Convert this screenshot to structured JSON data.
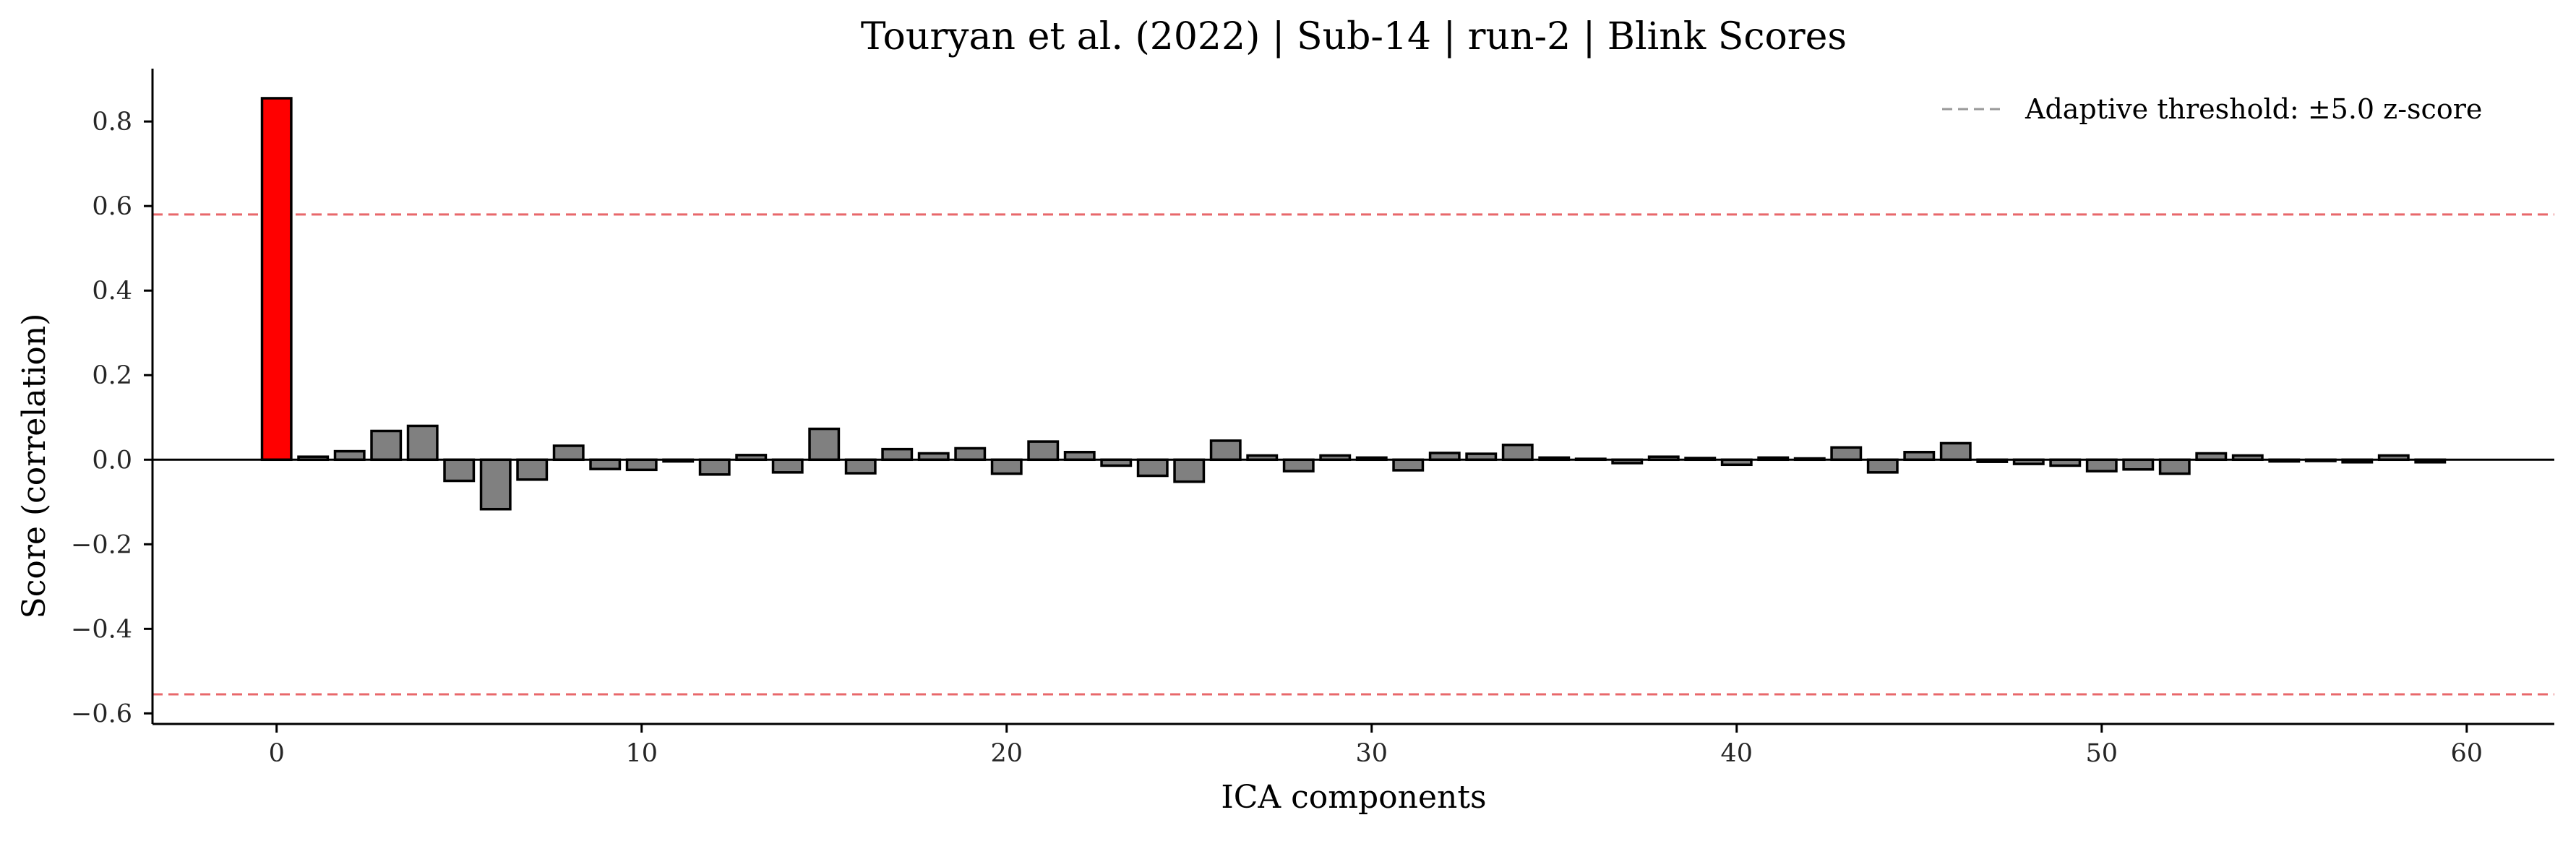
{
  "chart_data": {
    "type": "bar",
    "title": "Touryan et al. (2022) | Sub-14 | run-2 | Blink Scores",
    "xlabel": "ICA components",
    "ylabel": "Score (correlation)",
    "xlim": [
      -3.4,
      62.4
    ],
    "ylim": [
      -0.625,
      0.925
    ],
    "xticks": [
      0,
      10,
      20,
      30,
      40,
      50,
      60
    ],
    "yticks": [
      -0.6,
      -0.4,
      -0.2,
      0.0,
      0.2,
      0.4,
      0.6,
      0.8
    ],
    "xtick_labels": [
      "0",
      "10",
      "20",
      "30",
      "40",
      "50",
      "60"
    ],
    "ytick_labels": [
      "−0.6",
      "−0.4",
      "−0.2",
      "0.0",
      "0.2",
      "0.4",
      "0.6",
      "0.8"
    ],
    "series": [
      {
        "x": [
          0,
          1,
          2,
          3,
          4,
          5,
          6,
          7,
          8,
          9,
          10,
          11,
          12,
          13,
          14,
          15,
          16,
          17,
          18,
          19,
          20,
          21,
          22,
          23,
          24,
          25,
          26,
          27,
          28,
          29,
          30,
          31,
          32,
          33,
          34,
          35,
          36,
          37,
          38,
          39,
          40,
          41,
          42,
          43,
          44,
          45,
          46,
          47,
          48,
          49,
          50,
          51,
          52,
          53,
          54,
          55,
          56,
          57,
          58,
          59
        ],
        "values": [
          0.855,
          0.007,
          0.02,
          0.068,
          0.08,
          -0.05,
          -0.117,
          -0.047,
          0.033,
          -0.022,
          -0.024,
          -0.004,
          -0.035,
          0.011,
          -0.03,
          0.073,
          -0.032,
          0.025,
          0.015,
          0.027,
          -0.033,
          0.043,
          0.018,
          -0.014,
          -0.038,
          -0.052,
          0.045,
          0.01,
          -0.027,
          0.01,
          0.005,
          -0.025,
          0.016,
          0.014,
          0.035,
          0.005,
          0.002,
          -0.008,
          0.007,
          0.004,
          -0.012,
          0.005,
          0.003,
          0.029,
          -0.03,
          0.018,
          0.039,
          -0.005,
          -0.01,
          -0.014,
          -0.027,
          -0.023,
          -0.033,
          0.015,
          0.01,
          -0.004,
          -0.003,
          -0.006,
          0.01,
          -0.006
        ]
      }
    ],
    "flagged_components": [
      0
    ],
    "thresholds": [
      0.58,
      -0.555
    ],
    "legend": {
      "label": "Adaptive threshold: ±5.0 z-score",
      "placement": "top-right"
    },
    "grid": false
  },
  "colors": {
    "normal_bar": "#808080",
    "flagged_bar": "#ff0000",
    "bar_edge": "#000000",
    "threshold_line": "#e8686b",
    "legend_line": "#999999",
    "zero_line": "#000000",
    "axis": "#000000"
  }
}
